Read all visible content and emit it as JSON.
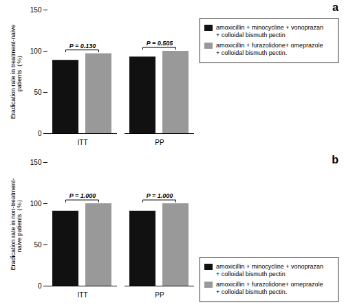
{
  "chart_data": [
    {
      "type": "bar",
      "title": "a",
      "categories": [
        "ITT",
        "PP"
      ],
      "series": [
        {
          "name": "amoxicillin + minocycline + vonoprazan\n+ colloidal bismuth pectin",
          "color": "#111111",
          "values": [
            89,
            93
          ]
        },
        {
          "name": "amoxicillin + furazolidone+ omeprazole\n+ colloidal bismuth pectin.",
          "color": "#999999",
          "values": [
            97,
            100
          ]
        }
      ],
      "y_label": "Eradication rate in treatment-naive patients（%）",
      "annotations": [
        "P = 0.130",
        "P = 0.505"
      ],
      "ylim": [
        0,
        150
      ],
      "yticks": [
        0,
        50,
        100,
        150
      ],
      "legend": "upper right",
      "grid": false
    },
    {
      "type": "bar",
      "title": "b",
      "categories": [
        "ITT",
        "PP"
      ],
      "series": [
        {
          "name": "amoxicillin + minocycline + vonoprazan\n+ colloidal bismuth pectin",
          "color": "#111111",
          "values": [
            91,
            91
          ]
        },
        {
          "name": "amoxicillin + furazolidone+ omeprazole\n+ colloidal bismuth pectin.",
          "color": "#999999",
          "values": [
            100,
            100
          ]
        }
      ],
      "y_label": "Eradication rate in non-treatment-naive patients（%）",
      "annotations": [
        "P = 1.000",
        "P = 1.000"
      ],
      "ylim": [
        0,
        150
      ],
      "yticks": [
        0,
        50,
        100,
        150
      ],
      "legend": "lower right",
      "grid": false
    }
  ]
}
